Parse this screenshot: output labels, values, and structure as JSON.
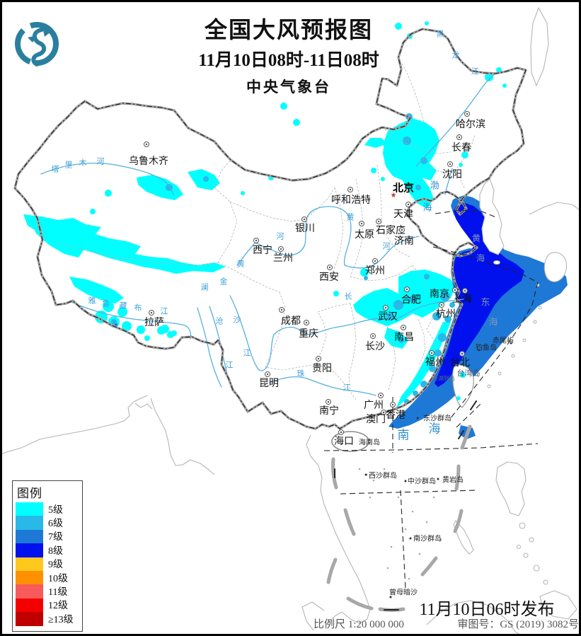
{
  "header": {
    "title": "全国大风预报图",
    "subtitle": "11月10日08时-11日08时",
    "agency": "中央气象台",
    "logo": "china-meteorological-administration-logo"
  },
  "legend": {
    "title": "图例",
    "items": [
      {
        "lv": "5",
        "label": "5级",
        "color": "#00FFFF"
      },
      {
        "lv": "6",
        "label": "6级",
        "color": "#28B9E8"
      },
      {
        "lv": "7",
        "label": "7级",
        "color": "#1E78D6"
      },
      {
        "lv": "8",
        "label": "8级",
        "color": "#0011EE"
      },
      {
        "lv": "9",
        "label": "9级",
        "color": "#FFC81E"
      },
      {
        "lv": "10",
        "label": "10级",
        "color": "#FF9000"
      },
      {
        "lv": "11",
        "label": "11级",
        "color": "#F85B5B"
      },
      {
        "lv": "12",
        "label": "12级",
        "color": "#F40000"
      },
      {
        "lv": "13",
        "label": "≥13级",
        "color": "#C00000"
      }
    ]
  },
  "footer": {
    "issued": "11月10日06时发布",
    "scale_label": "比例尺 1:20 000 000",
    "approval": "审图号：GS (2019) 3082号"
  },
  "map": {
    "capital": {
      "name": "北京",
      "star": [
        553,
        274
      ],
      "label": [
        567,
        262
      ]
    },
    "cities": [
      [
        "乌鲁木齐",
        204,
        201,
        207,
        224
      ],
      [
        "哈尔滨",
        657,
        158,
        662,
        172
      ],
      [
        "长春",
        646,
        191,
        649,
        205
      ],
      [
        "沈阳",
        633,
        229,
        636,
        243
      ],
      [
        "天津",
        574,
        286,
        567,
        299
      ],
      [
        "呼和浩特",
        492,
        265,
        493,
        279
      ],
      [
        "石家庄",
        532,
        310,
        549,
        322
      ],
      [
        "太原",
        508,
        313,
        512,
        328
      ],
      [
        "济南",
        565,
        322,
        568,
        337
      ],
      [
        "郑州",
        527,
        366,
        527,
        379
      ],
      [
        "西安",
        463,
        375,
        462,
        388
      ],
      [
        "银川",
        427,
        307,
        428,
        319
      ],
      [
        "西宁",
        359,
        337,
        368,
        350
      ],
      [
        "兰州",
        394,
        349,
        397,
        361
      ],
      [
        "合肥",
        572,
        406,
        578,
        420
      ],
      [
        "南京",
        640,
        407,
        618,
        412
      ],
      [
        "上海",
        654,
        408,
        650,
        419
      ],
      [
        "杭州",
        621,
        428,
        627,
        440
      ],
      [
        "武汉",
        542,
        432,
        545,
        444
      ],
      [
        "南昌",
        567,
        460,
        568,
        473
      ],
      [
        "长沙",
        524,
        472,
        527,
        486
      ],
      [
        "成都",
        395,
        435,
        408,
        450
      ],
      [
        "重庆",
        430,
        453,
        433,
        468
      ],
      [
        "贵阳",
        447,
        504,
        452,
        517
      ],
      [
        "昆明",
        375,
        526,
        377,
        538
      ],
      [
        "拉萨",
        211,
        439,
        215,
        452
      ],
      [
        "福州",
        607,
        496,
        612,
        508
      ],
      [
        "台北",
        650,
        497,
        647,
        509
      ],
      [
        "南宁",
        461,
        565,
        462,
        577
      ],
      [
        "广州",
        535,
        556,
        525,
        569
      ],
      [
        "香港",
        552,
        569,
        556,
        583
      ],
      [
        "澳门",
        539,
        580,
        528,
        589
      ],
      [
        "海口",
        479,
        608,
        483,
        620
      ]
    ],
    "islands": [
      [
        "东沙群岛",
        587,
        588,
        615,
        587
      ],
      [
        "西沙群岛",
        514,
        668,
        538,
        668
      ],
      [
        "中沙群岛",
        570,
        677,
        593,
        676
      ],
      [
        "黄岩岛",
        616,
        674,
        637,
        674
      ],
      [
        "南沙群岛",
        577,
        758,
        601,
        757
      ],
      [
        "曾母暗沙",
        549,
        841,
        567,
        833
      ],
      [
        "钓鱼岛",
        674,
        492,
        684,
        487
      ],
      [
        "赤尾屿",
        719,
        482,
        708,
        477
      ]
    ],
    "area_labels": [
      [
        "海南岛",
        519,
        621,
        10,
        "#222"
      ],
      [
        "台湾岛",
        659,
        524,
        11,
        "#3d4f63"
      ],
      [
        "澎湖列岛",
        624,
        532,
        8,
        "#5a6b7d"
      ]
    ],
    "sea_chars": [
      [
        "渤",
        611,
        259,
        13,
        "#2f8fcc"
      ],
      [
        "海",
        601,
        290,
        13,
        "#2f8fcc"
      ],
      [
        "黄",
        670,
        334,
        12,
        "#7e95b5"
      ],
      [
        "海",
        676,
        362,
        12,
        "#7e95b5"
      ],
      [
        "东",
        683,
        424,
        13,
        "#7e95b5"
      ],
      [
        "海",
        694,
        452,
        13,
        "#7e95b5"
      ],
      [
        "南",
        567,
        612,
        17,
        "#2f8fcc"
      ],
      [
        "海",
        611,
        603,
        17,
        "#2f8fcc"
      ]
    ],
    "river_chars": [
      [
        "塔",
        75,
        237
      ],
      [
        "里",
        94,
        231
      ],
      [
        "木",
        114,
        228
      ],
      [
        "河",
        139,
        226
      ],
      [
        "黑",
        619,
        46
      ],
      [
        "龙",
        641,
        76
      ],
      [
        "江",
        668,
        99
      ],
      [
        "黄",
        492,
        305
      ],
      [
        "河",
        543,
        346
      ],
      [
        "黄",
        337,
        371
      ],
      [
        "河",
        393,
        332
      ],
      [
        "长",
        489,
        417
      ],
      [
        "珠",
        422,
        526
      ],
      [
        "江",
        487,
        546
      ],
      [
        "雅",
        127,
        423
      ],
      [
        "鲁",
        147,
        427
      ],
      [
        "藏",
        171,
        430
      ],
      [
        "布",
        192,
        433
      ],
      [
        "江",
        229,
        438
      ],
      [
        "金",
        313,
        396
      ],
      [
        "沙",
        332,
        450
      ],
      [
        "江",
        346,
        497
      ],
      [
        "澜",
        286,
        404
      ],
      [
        "沧",
        307,
        452
      ],
      [
        "江",
        321,
        514
      ]
    ]
  }
}
